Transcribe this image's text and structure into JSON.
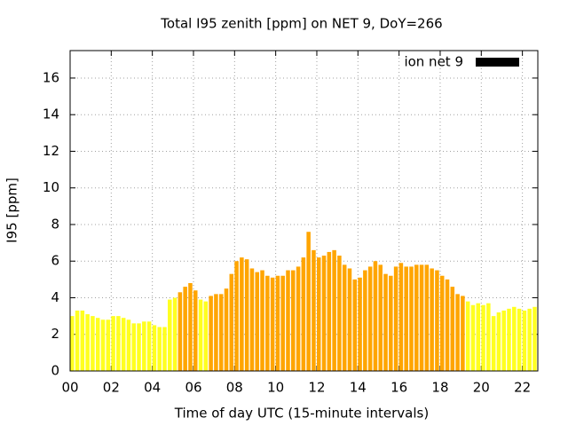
{
  "chart_data": {
    "type": "bar",
    "title": "Total I95 zenith [ppm] on NET 9, DoY=266",
    "x_label": "Time of day UTC (15-minute intervals)",
    "y_label": "I95 [ppm]",
    "x": [
      0,
      0.25,
      0.5,
      0.75,
      1,
      1.25,
      1.5,
      1.75,
      2,
      2.25,
      2.5,
      2.75,
      3,
      3.25,
      3.5,
      3.75,
      4,
      4.25,
      4.5,
      4.75,
      5,
      5.25,
      5.5,
      5.75,
      6,
      6.25,
      6.5,
      6.75,
      7,
      7.25,
      7.5,
      7.75,
      8,
      8.25,
      8.5,
      8.75,
      9,
      9.25,
      9.5,
      9.75,
      10,
      10.25,
      10.5,
      10.75,
      11,
      11.25,
      11.5,
      11.75,
      12,
      12.25,
      12.5,
      12.75,
      13,
      13.25,
      13.5,
      13.75,
      14,
      14.25,
      14.5,
      14.75,
      15,
      15.25,
      15.5,
      15.75,
      16,
      16.25,
      16.5,
      16.75,
      17,
      17.25,
      17.5,
      17.75,
      18,
      18.25,
      18.5,
      18.75,
      19,
      19.25,
      19.5,
      19.75,
      20,
      20.25,
      20.5,
      20.75,
      21,
      21.25,
      21.5,
      21.75,
      22,
      22.25,
      22.5
    ],
    "series": [
      {
        "name": "ion net 9",
        "color": "#000000",
        "values": [
          3.0,
          3.3,
          3.3,
          3.1,
          3.0,
          2.9,
          2.8,
          2.8,
          3.0,
          3.0,
          2.9,
          2.8,
          2.6,
          2.6,
          2.7,
          2.7,
          2.5,
          2.4,
          2.4,
          3.9,
          4.0,
          4.3,
          4.6,
          4.8,
          4.4,
          3.9,
          3.8,
          4.1,
          4.2,
          4.2,
          4.5,
          5.3,
          6.0,
          6.2,
          6.1,
          5.6,
          5.4,
          5.5,
          5.2,
          5.1,
          5.2,
          5.2,
          5.5,
          5.5,
          5.7,
          6.2,
          7.6,
          6.6,
          6.2,
          6.3,
          6.5,
          6.6,
          6.3,
          5.8,
          5.6,
          5.0,
          5.1,
          5.5,
          5.7,
          6.0,
          5.8,
          5.3,
          5.2,
          5.7,
          5.9,
          5.7,
          5.7,
          5.8,
          5.8,
          5.8,
          5.6,
          5.5,
          5.2,
          5.0,
          4.6,
          4.2,
          4.1,
          3.8,
          3.6,
          3.7,
          3.6,
          3.7,
          3.0,
          3.2,
          3.3,
          3.4,
          3.5,
          3.4,
          3.3,
          3.4,
          3.5
        ],
        "colors": [
          "#ffff20",
          "#ffff20",
          "#ffff20",
          "#ffff20",
          "#ffff20",
          "#ffff20",
          "#ffff20",
          "#ffff20",
          "#ffff20",
          "#ffff20",
          "#ffff20",
          "#ffff20",
          "#ffff20",
          "#ffff20",
          "#ffff20",
          "#ffff20",
          "#ffff20",
          "#ffff20",
          "#ffff20",
          "#ffff20",
          "#ffff20",
          "#ffa500",
          "#ffa500",
          "#ffa500",
          "#ffa500",
          "#ffff20",
          "#ffff20",
          "#ffa500",
          "#ffa500",
          "#ffa500",
          "#ffa500",
          "#ffa500",
          "#ffa500",
          "#ffa500",
          "#ffa500",
          "#ffa500",
          "#ffa500",
          "#ffa500",
          "#ffa500",
          "#ffa500",
          "#ffa500",
          "#ffa500",
          "#ffa500",
          "#ffa500",
          "#ffa500",
          "#ffa500",
          "#ffa500",
          "#ffa500",
          "#ffa500",
          "#ffa500",
          "#ffa500",
          "#ffa500",
          "#ffa500",
          "#ffa500",
          "#ffa500",
          "#ffa500",
          "#ffa500",
          "#ffa500",
          "#ffa500",
          "#ffa500",
          "#ffa500",
          "#ffa500",
          "#ffa500",
          "#ffa500",
          "#ffa500",
          "#ffa500",
          "#ffa500",
          "#ffa500",
          "#ffa500",
          "#ffa500",
          "#ffa500",
          "#ffa500",
          "#ffa500",
          "#ffa500",
          "#ffa500",
          "#ffa500",
          "#ffa500",
          "#ffff20",
          "#ffff20",
          "#ffff20",
          "#ffff20",
          "#ffff20",
          "#ffff20",
          "#ffff20",
          "#ffff20",
          "#ffff20",
          "#ffff20",
          "#ffff20",
          "#ffff20",
          "#ffff20",
          "#ffff20"
        ]
      }
    ],
    "xlim": [
      0,
      22.75
    ],
    "ylim": [
      0,
      17.5
    ],
    "xticks": [
      {
        "value": 0,
        "label": "00"
      },
      {
        "value": 2,
        "label": "02"
      },
      {
        "value": 4,
        "label": "04"
      },
      {
        "value": 6,
        "label": "06"
      },
      {
        "value": 8,
        "label": "08"
      },
      10,
      12,
      14,
      16,
      18,
      20,
      22
    ],
    "yticks": [
      0,
      2,
      4,
      6,
      8,
      10,
      12,
      14,
      16
    ],
    "grid": true,
    "legend": "top-right"
  }
}
